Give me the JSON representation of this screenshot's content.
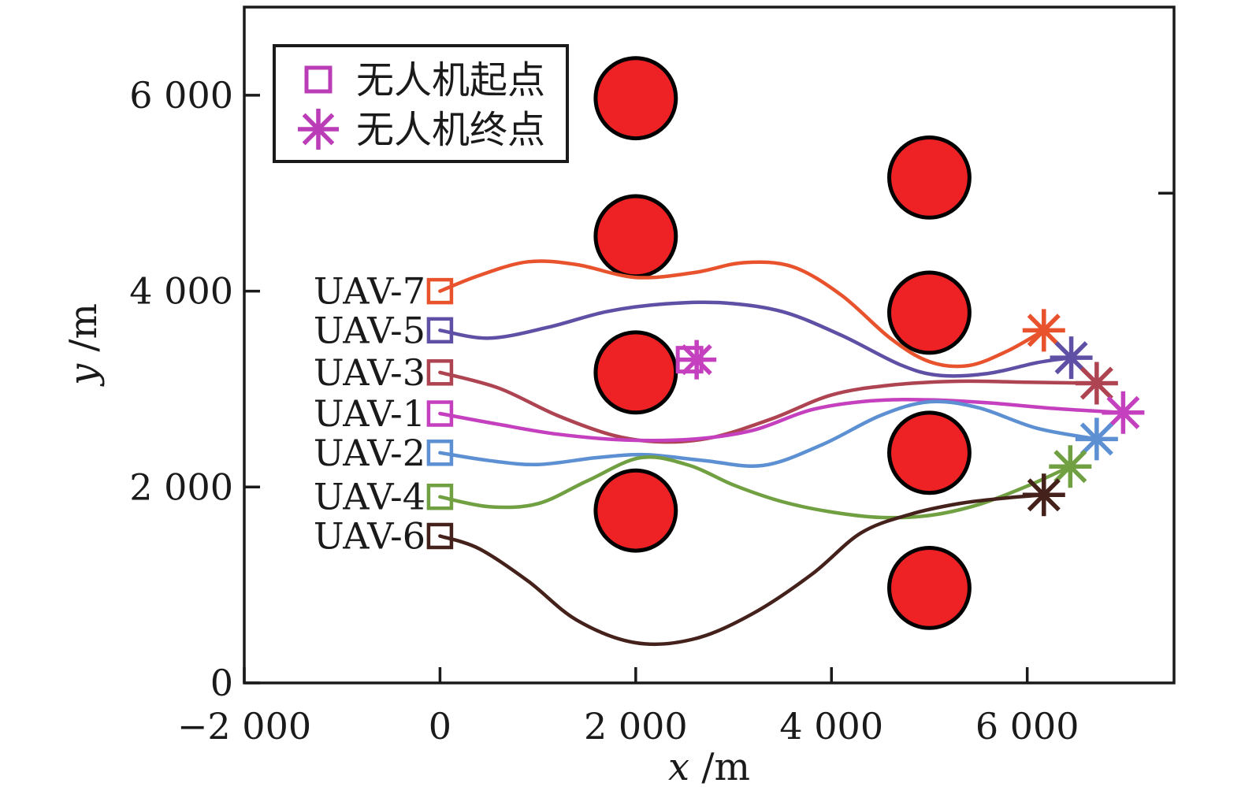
{
  "chart_data": {
    "type": "line",
    "title": "",
    "xlabel_var": "x",
    "xlabel_unit": " /m",
    "ylabel_var": "y",
    "ylabel_unit": " /m",
    "xlim": [
      -2000,
      7500
    ],
    "ylim": [
      0,
      6900
    ],
    "x_ticks": [
      -2000,
      0,
      2000,
      4000,
      6000
    ],
    "x_tick_labels": [
      "−2 000",
      "0",
      "2 000",
      "4 000",
      "6 000"
    ],
    "y_ticks": [
      0,
      2000,
      4000,
      6000
    ],
    "y_tick_labels": [
      "0",
      "2 000",
      "4 000",
      "6 000"
    ],
    "right_side_tick_y": 5000,
    "grid": false,
    "legend": {
      "position": "top-left",
      "marker_color": "#ba3cb6",
      "items": [
        {
          "marker": "square",
          "label": "无人机起点"
        },
        {
          "marker": "asterisk",
          "label": "无人机终点"
        }
      ]
    },
    "obstacles": {
      "fill": "#ee2224",
      "edge": "#000000",
      "radius_m": 410,
      "centers": [
        [
          2000,
          5970
        ],
        [
          2000,
          4560
        ],
        [
          2000,
          3170
        ],
        [
          2000,
          1760
        ],
        [
          5000,
          5160
        ],
        [
          5000,
          3780
        ],
        [
          5000,
          2350
        ],
        [
          5000,
          970
        ]
      ]
    },
    "series": [
      {
        "name": "UAV-7",
        "color": "#e8522c",
        "start": [
          0,
          4000
        ],
        "end": [
          6170,
          3600
        ],
        "points": [
          [
            0,
            4000
          ],
          [
            400,
            4160
          ],
          [
            900,
            4300
          ],
          [
            1400,
            4270
          ],
          [
            2000,
            4140
          ],
          [
            2600,
            4190
          ],
          [
            3100,
            4290
          ],
          [
            3600,
            4250
          ],
          [
            4100,
            3960
          ],
          [
            4600,
            3520
          ],
          [
            5000,
            3280
          ],
          [
            5400,
            3240
          ],
          [
            5800,
            3390
          ],
          [
            6170,
            3600
          ]
        ]
      },
      {
        "name": "UAV-5",
        "color": "#6050a5",
        "start": [
          0,
          3600
        ],
        "end": [
          6450,
          3320
        ],
        "points": [
          [
            0,
            3600
          ],
          [
            500,
            3520
          ],
          [
            1100,
            3630
          ],
          [
            1700,
            3790
          ],
          [
            2300,
            3870
          ],
          [
            2900,
            3880
          ],
          [
            3500,
            3790
          ],
          [
            4100,
            3550
          ],
          [
            4700,
            3250
          ],
          [
            5100,
            3140
          ],
          [
            5600,
            3160
          ],
          [
            6100,
            3270
          ],
          [
            6450,
            3320
          ]
        ]
      },
      {
        "name": "UAV-3",
        "color": "#ae4452",
        "start": [
          0,
          3170
        ],
        "end": [
          6710,
          3060
        ],
        "points": [
          [
            0,
            3170
          ],
          [
            600,
            3010
          ],
          [
            1200,
            2730
          ],
          [
            1800,
            2520
          ],
          [
            2300,
            2460
          ],
          [
            2800,
            2510
          ],
          [
            3400,
            2700
          ],
          [
            4000,
            2940
          ],
          [
            4600,
            3040
          ],
          [
            5300,
            3080
          ],
          [
            6000,
            3070
          ],
          [
            6710,
            3060
          ]
        ]
      },
      {
        "name": "UAV-1",
        "color": "#c440be",
        "start": [
          0,
          2750
        ],
        "end": [
          6980,
          2760
        ],
        "points": [
          [
            0,
            2750
          ],
          [
            600,
            2640
          ],
          [
            1200,
            2540
          ],
          [
            1900,
            2480
          ],
          [
            2600,
            2490
          ],
          [
            3200,
            2580
          ],
          [
            3800,
            2790
          ],
          [
            4400,
            2880
          ],
          [
            5000,
            2890
          ],
          [
            5600,
            2860
          ],
          [
            6300,
            2800
          ],
          [
            6980,
            2760
          ]
        ]
      },
      {
        "name": "UAV-2",
        "color": "#5c90d2",
        "start": [
          0,
          2350
        ],
        "end": [
          6710,
          2490
        ],
        "points": [
          [
            0,
            2350
          ],
          [
            500,
            2270
          ],
          [
            1000,
            2230
          ],
          [
            1600,
            2300
          ],
          [
            2100,
            2330
          ],
          [
            2700,
            2270
          ],
          [
            3300,
            2220
          ],
          [
            3900,
            2430
          ],
          [
            4500,
            2730
          ],
          [
            5000,
            2870
          ],
          [
            5500,
            2810
          ],
          [
            6100,
            2600
          ],
          [
            6710,
            2490
          ]
        ]
      },
      {
        "name": "UAV-4",
        "color": "#70a041",
        "start": [
          0,
          1900
        ],
        "end": [
          6440,
          2210
        ],
        "points": [
          [
            0,
            1900
          ],
          [
            500,
            1800
          ],
          [
            1000,
            1830
          ],
          [
            1500,
            2060
          ],
          [
            2050,
            2300
          ],
          [
            2550,
            2220
          ],
          [
            3000,
            2020
          ],
          [
            3500,
            1850
          ],
          [
            4000,
            1745
          ],
          [
            4500,
            1690
          ],
          [
            5000,
            1710
          ],
          [
            5500,
            1820
          ],
          [
            6000,
            2010
          ],
          [
            6440,
            2210
          ]
        ]
      },
      {
        "name": "UAV-6",
        "color": "#45211b",
        "start": [
          0,
          1500
        ],
        "end": [
          6170,
          1920
        ],
        "points": [
          [
            0,
            1500
          ],
          [
            400,
            1370
          ],
          [
            900,
            1040
          ],
          [
            1400,
            640
          ],
          [
            2000,
            410
          ],
          [
            2600,
            450
          ],
          [
            3200,
            710
          ],
          [
            3800,
            1110
          ],
          [
            4300,
            1530
          ],
          [
            4800,
            1720
          ],
          [
            5300,
            1830
          ],
          [
            5800,
            1890
          ],
          [
            6170,
            1920
          ]
        ]
      }
    ],
    "coincident_start_end_marker": {
      "x": 2550,
      "y": 3300,
      "color": "#c440be"
    }
  }
}
